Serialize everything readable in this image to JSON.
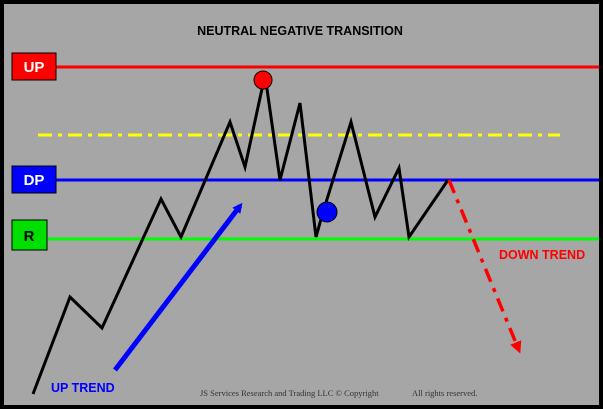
{
  "title": "NEUTRAL NEGATIVE TRANSITION",
  "levels": {
    "up": {
      "label": "UP",
      "color": "#ff0000",
      "box_fill": "#ff0000",
      "text_color": "#ffffff"
    },
    "dp": {
      "label": "DP",
      "color": "#0000ff",
      "box_fill": "#0000ff",
      "text_color": "#ffffff"
    },
    "r": {
      "label": "R",
      "color": "#00ff00",
      "box_fill": "#00e000",
      "text_color": "#000000"
    },
    "midline": {
      "color": "#ffff00",
      "style": "dash-dot"
    }
  },
  "annotations": {
    "up_trend": {
      "label": "UP TREND",
      "color": "#0000ff"
    },
    "down_trend": {
      "label": "DOWN TREND",
      "color": "#ff0000"
    }
  },
  "markers": {
    "top": {
      "color": "#ff0000"
    },
    "bottom": {
      "color": "#0000ff"
    }
  },
  "price_path_color": "#000000",
  "footer": {
    "copyright": "JS Services Research and Trading LLC © Copyright",
    "rights": "All rights reserved."
  }
}
